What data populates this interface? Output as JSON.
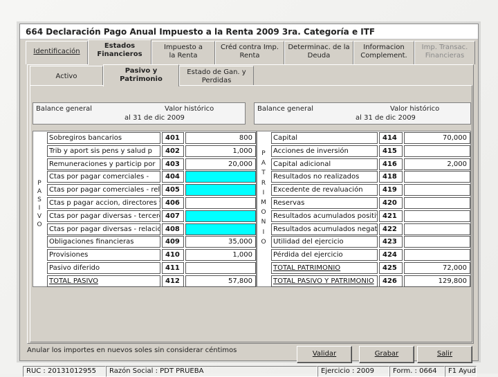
{
  "window": {
    "title": "664 Declaración Pago Anual Impuesto a la Renta 2009 3ra. Categoría e ITF"
  },
  "main_tabs": [
    {
      "label": "Identificación",
      "selected": false,
      "disabled": false
    },
    {
      "label": "Estados Financieros",
      "selected": true,
      "disabled": false
    },
    {
      "label": "Impuesto a la Renta",
      "selected": false,
      "disabled": false
    },
    {
      "label": "Créd contra Imp. Renta",
      "selected": false,
      "disabled": false
    },
    {
      "label": "Determinac. de la Deuda",
      "selected": false,
      "disabled": false
    },
    {
      "label": "Informacion Complement.",
      "selected": false,
      "disabled": false
    },
    {
      "label": "Imp. Transac. Financieras",
      "selected": false,
      "disabled": true
    }
  ],
  "sub_tabs": [
    {
      "label": "Activo",
      "selected": false
    },
    {
      "label": "Pasivo y Patrimonio",
      "selected": true
    },
    {
      "label": "Estado de Gan. y Perdidas",
      "selected": false
    }
  ],
  "left_header": {
    "title": "Balance general",
    "value_label": "Valor histórico",
    "date": "al 31 de dic 2009"
  },
  "right_header": {
    "title": "Balance general",
    "value_label": "Valor histórico",
    "date": "al 31 de dic 2009"
  },
  "pasivo_vertical": [
    "P",
    "A",
    "S",
    "I",
    "V",
    "O"
  ],
  "patrimonio_vertical": [
    "P",
    "A",
    "T",
    "R",
    "I",
    "M",
    "O",
    "N",
    "I",
    "O"
  ],
  "pasivo_rows": [
    {
      "label": "Sobregiros bancarios",
      "code": "401",
      "value": "800",
      "highlight": false
    },
    {
      "label": "Trib y aport sis pens y salud p",
      "code": "402",
      "value": "1,000",
      "highlight": false
    },
    {
      "label": "Remuneraciones y particip por",
      "code": "403",
      "value": "20,000",
      "highlight": false
    },
    {
      "label": "Ctas por pagar comerciales -",
      "code": "404",
      "value": "",
      "highlight": true
    },
    {
      "label": "Ctas por pagar comerciales - relac",
      "code": "405",
      "value": "",
      "highlight": true
    },
    {
      "label": "Ctas p pagar accion, directores y",
      "code": "406",
      "value": "",
      "highlight": false
    },
    {
      "label": "Ctas por pagar diversas - terceros",
      "code": "407",
      "value": "",
      "highlight": true
    },
    {
      "label": "Ctas por pagar diversas - relacionad",
      "code": "408",
      "value": "",
      "highlight": true
    },
    {
      "label": "Obligaciones financieras",
      "code": "409",
      "value": "35,000",
      "highlight": false
    },
    {
      "label": "Provisiones",
      "code": "410",
      "value": "1,000",
      "highlight": false
    },
    {
      "label": "Pasivo diferido",
      "code": "411",
      "value": "",
      "highlight": false
    },
    {
      "label": "TOTAL PASIVO",
      "code": "412",
      "value": "57,800",
      "highlight": false
    }
  ],
  "patrimonio_rows": [
    {
      "label": "Capital",
      "code": "414",
      "value": "70,000"
    },
    {
      "label": "Acciones de inversión",
      "code": "415",
      "value": ""
    },
    {
      "label": "Capital adicional",
      "code": "416",
      "value": "2,000"
    },
    {
      "label": "Resultados no realizados",
      "code": "418",
      "value": ""
    },
    {
      "label": "Excedente de revaluación",
      "code": "419",
      "value": ""
    },
    {
      "label": "Reservas",
      "code": "420",
      "value": ""
    },
    {
      "label": "Resultados acumulados positivo",
      "code": "421",
      "value": ""
    },
    {
      "label": "Resultados acumulados negativo",
      "code": "422",
      "value": ""
    },
    {
      "label": "Utilidad del ejercicio",
      "code": "423",
      "value": ""
    },
    {
      "label": "Pérdida del ejercicio",
      "code": "424",
      "value": ""
    },
    {
      "label": "TOTAL PATRIMONIO",
      "code": "425",
      "value": "72,000"
    },
    {
      "label": "TOTAL PASIVO Y PATRIMONIO",
      "code": "426",
      "value": "129,800"
    }
  ],
  "footer_note": "Anular los importes en nuevos soles sin considerar céntimos",
  "buttons": {
    "validar": "Validar",
    "grabar": "Grabar",
    "salir": "Salir"
  },
  "status_bar": {
    "ruc": "RUC : 20131012955",
    "razon_social": "Razón Social : PDT PRUEBA",
    "ejercicio": "Ejercicio : 2009",
    "formulario": "Form. : 0664",
    "ayuda": "F1 Ayuda"
  },
  "colors": {
    "highlight": "#00ffff",
    "window_bg": "#d4d0c8"
  }
}
